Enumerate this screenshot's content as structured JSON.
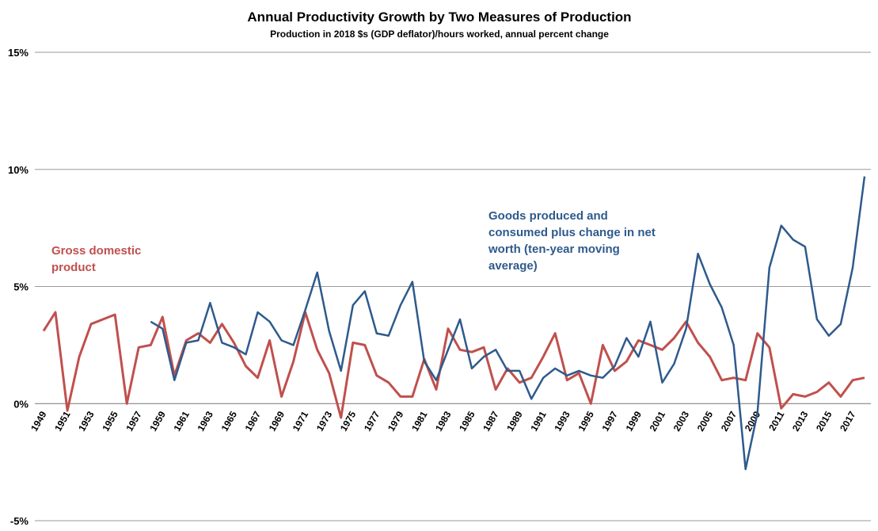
{
  "chart_data": {
    "type": "line",
    "title": "Annual Productivity Growth by Two Measures of Production",
    "subtitle": "Production in 2018 $s (GDP deflator)/hours worked, annual percent change",
    "xlabel": "",
    "ylabel": "",
    "ylim": [
      -5,
      15
    ],
    "xlim": [
      1949,
      2018
    ],
    "grid": true,
    "y_ticks": [
      15,
      10,
      5,
      0,
      -5
    ],
    "y_tick_labels": [
      "15%",
      "10%",
      "5%",
      "0%",
      "-5%"
    ],
    "x_tick_labels": [
      "1949",
      "1951",
      "1953",
      "1955",
      "1957",
      "1959",
      "1961",
      "1963",
      "1965",
      "1967",
      "1969",
      "1971",
      "1973",
      "1975",
      "1977",
      "1979",
      "1981",
      "1983",
      "1985",
      "1987",
      "1989",
      "1991",
      "1993",
      "1995",
      "1997",
      "1999",
      "2001",
      "2003",
      "2005",
      "2007",
      "2009",
      "2011",
      "2013",
      "2015",
      "2017"
    ],
    "series": [
      {
        "name": "Gross domestic product",
        "label_lines": [
          "Gross domestic",
          "product"
        ],
        "color": "#C0504D",
        "x": [
          1949,
          1950,
          1951,
          1952,
          1953,
          1954,
          1955,
          1956,
          1957,
          1958,
          1959,
          1960,
          1961,
          1962,
          1963,
          1964,
          1965,
          1966,
          1967,
          1968,
          1969,
          1970,
          1971,
          1972,
          1973,
          1974,
          1975,
          1976,
          1977,
          1978,
          1979,
          1980,
          1981,
          1982,
          1983,
          1984,
          1985,
          1986,
          1987,
          1988,
          1989,
          1990,
          1991,
          1992,
          1993,
          1994,
          1995,
          1996,
          1997,
          1998,
          1999,
          2000,
          2001,
          2002,
          2003,
          2004,
          2005,
          2006,
          2007,
          2008,
          2009,
          2010,
          2011,
          2012,
          2013,
          2014,
          2015,
          2016,
          2017,
          2018
        ],
        "values": [
          3.1,
          3.9,
          -0.3,
          2.0,
          3.4,
          3.6,
          3.8,
          0.0,
          2.4,
          2.5,
          3.7,
          1.2,
          2.7,
          3.0,
          2.6,
          3.4,
          2.6,
          1.6,
          1.1,
          2.7,
          0.3,
          1.8,
          3.9,
          2.3,
          1.3,
          -0.6,
          2.6,
          2.5,
          1.2,
          0.9,
          0.3,
          0.3,
          1.9,
          0.6,
          3.2,
          2.3,
          2.2,
          2.4,
          0.6,
          1.5,
          0.9,
          1.1,
          2.0,
          3.0,
          1.0,
          1.3,
          0.0,
          2.5,
          1.4,
          1.8,
          2.7,
          2.5,
          2.3,
          2.8,
          3.5,
          2.6,
          2.0,
          1.0,
          1.1,
          1.0,
          3.0,
          2.4,
          -0.2,
          0.4,
          0.3,
          0.5,
          0.9,
          0.3,
          1.0,
          1.1
        ]
      },
      {
        "name": "Goods produced and consumed plus change in net worth (ten-year moving average)",
        "label_lines": [
          "Goods produced and",
          "consumed plus change in net",
          "worth (ten-year moving",
          "average)"
        ],
        "color": "#2E5A8C",
        "x": [
          1958,
          1959,
          1960,
          1961,
          1962,
          1963,
          1964,
          1965,
          1966,
          1967,
          1968,
          1969,
          1970,
          1971,
          1972,
          1973,
          1974,
          1975,
          1976,
          1977,
          1978,
          1979,
          1980,
          1981,
          1982,
          1983,
          1984,
          1985,
          1986,
          1987,
          1988,
          1989,
          1990,
          1991,
          1992,
          1993,
          1994,
          1995,
          1996,
          1997,
          1998,
          1999,
          2000,
          2001,
          2002,
          2003,
          2004,
          2005,
          2006,
          2007,
          2008,
          2009,
          2010,
          2011,
          2012,
          2013,
          2014,
          2015,
          2016,
          2017,
          2018
        ],
        "values": [
          3.5,
          3.2,
          1.0,
          2.6,
          2.7,
          4.3,
          2.6,
          2.4,
          2.1,
          3.9,
          3.5,
          2.7,
          2.5,
          4.0,
          5.6,
          3.1,
          1.4,
          4.2,
          4.8,
          3.0,
          2.9,
          4.2,
          5.2,
          1.8,
          1.0,
          2.3,
          3.6,
          1.5,
          2.0,
          2.3,
          1.4,
          1.4,
          0.2,
          1.1,
          1.5,
          1.2,
          1.4,
          1.2,
          1.1,
          1.6,
          2.8,
          2.0,
          3.5,
          0.9,
          1.7,
          3.2,
          6.4,
          5.1,
          4.1,
          2.5,
          -2.8,
          -0.4,
          5.8,
          7.6,
          7.0,
          6.7,
          3.6,
          2.9,
          3.4,
          5.8,
          9.7
        ]
      }
    ]
  }
}
